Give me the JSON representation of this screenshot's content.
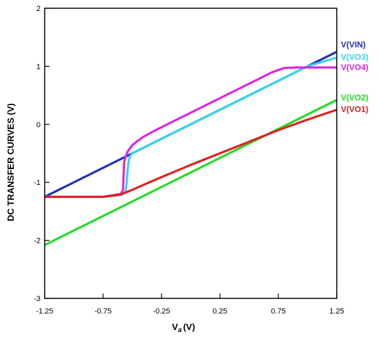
{
  "chart_data": {
    "type": "line",
    "title": "",
    "xlabel": "V",
    "xlabel_sub": "a",
    "xlabel_unit": "(V)",
    "ylabel": "DC TRANSFER CURVES  (V)",
    "xlim": [
      -1.25,
      1.25
    ],
    "ylim": [
      -3,
      2
    ],
    "x_ticks": [
      -1.25,
      -0.75,
      -0.25,
      0.25,
      0.75,
      1.25
    ],
    "x_tick_labels": [
      "-1.25",
      "-0.75",
      "-0.25",
      "0.25",
      "0.75",
      "1.25"
    ],
    "y_ticks": [
      -3,
      -2,
      -1,
      0,
      1,
      2
    ],
    "y_tick_labels": [
      "-3",
      "-2",
      "-1",
      "0",
      "1",
      "2"
    ],
    "grid": false,
    "legend_placement": "right, at line ends",
    "series": [
      {
        "name": "V(VIN)",
        "color": "#1f2fc0",
        "x": [
          -1.25,
          1.25
        ],
        "y": [
          -1.25,
          1.25
        ]
      },
      {
        "name": "V(VO3)",
        "color": "#33d6f0",
        "x": [
          -1.25,
          -0.75,
          -0.6,
          -0.56,
          -0.55,
          -0.54,
          -0.53,
          -0.52,
          -0.5,
          -0.45,
          -0.35,
          -0.25,
          0,
          0.25,
          0.5,
          0.75,
          1.0,
          1.25
        ],
        "y": [
          -1.25,
          -1.25,
          -1.22,
          -1.18,
          -1.05,
          -0.8,
          -0.62,
          -0.55,
          -0.5,
          -0.45,
          -0.35,
          -0.25,
          0.0,
          0.25,
          0.5,
          0.75,
          1.0,
          1.15
        ]
      },
      {
        "name": "V(VO4)",
        "color": "#e024e0",
        "x": [
          -1.25,
          -0.75,
          -0.6,
          -0.58,
          -0.575,
          -0.57,
          -0.56,
          -0.54,
          -0.5,
          -0.45,
          -0.4,
          -0.3,
          -0.25,
          0,
          0.25,
          0.5,
          0.7,
          0.8,
          0.9,
          1.0,
          1.25
        ],
        "y": [
          -1.25,
          -1.25,
          -1.2,
          -1.14,
          -0.9,
          -0.66,
          -0.58,
          -0.47,
          -0.36,
          -0.28,
          -0.21,
          -0.1,
          -0.05,
          0.2,
          0.45,
          0.7,
          0.9,
          0.97,
          0.98,
          0.98,
          0.98
        ]
      },
      {
        "name": "V(VO2)",
        "color": "#22dd22",
        "x": [
          -1.25,
          1.25
        ],
        "y": [
          -2.08,
          0.42
        ]
      },
      {
        "name": "V(VO1)",
        "color": "#e02020",
        "x": [
          -1.25,
          -0.75,
          -0.6,
          -0.5,
          -0.4,
          -0.25,
          0,
          0.25,
          0.5,
          0.75,
          1.0,
          1.25
        ],
        "y": [
          -1.25,
          -1.25,
          -1.21,
          -1.13,
          -1.04,
          -0.91,
          -0.7,
          -0.5,
          -0.3,
          -0.1,
          0.08,
          0.25
        ]
      }
    ],
    "legend_order": [
      "V(VIN)",
      "V(VO3)",
      "V(VO4)",
      "V(VO2)",
      "V(VO1)"
    ]
  }
}
